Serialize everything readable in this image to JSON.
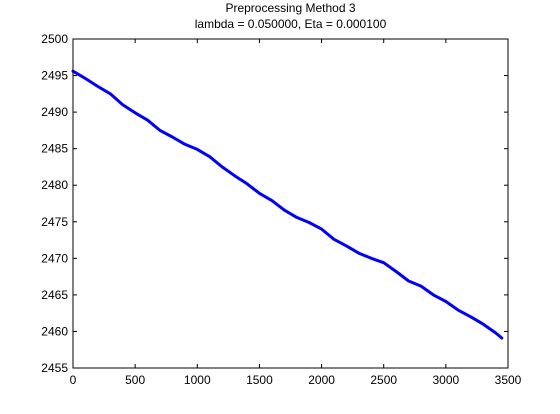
{
  "chart_data": {
    "type": "line",
    "title_lines": [
      "Preprocessing Method 3",
      "lambda = 0.050000, Eta = 0.000100"
    ],
    "xlabel": "",
    "ylabel": "",
    "xlim": [
      0,
      3500
    ],
    "ylim": [
      2455,
      2500
    ],
    "xticks": [
      0,
      500,
      1000,
      1500,
      2000,
      2500,
      3000,
      3500
    ],
    "yticks": [
      2455,
      2460,
      2465,
      2470,
      2475,
      2480,
      2485,
      2490,
      2495,
      2500
    ],
    "grid": false,
    "line_color": "#0000ff",
    "series": [
      {
        "x": [
          0,
          50,
          100,
          200,
          300,
          400,
          500,
          600,
          700,
          800,
          900,
          1000,
          1100,
          1200,
          1300,
          1400,
          1500,
          1600,
          1700,
          1800,
          1900,
          2000,
          2100,
          2200,
          2300,
          2400,
          2500,
          2600,
          2700,
          2800,
          2900,
          3000,
          3100,
          3200,
          3300,
          3400,
          3450
        ],
        "y": [
          2495.6,
          2495.1,
          2494.6,
          2493.5,
          2492.5,
          2491.0,
          2489.9,
          2488.9,
          2487.5,
          2486.6,
          2485.6,
          2484.9,
          2483.9,
          2482.5,
          2481.3,
          2480.2,
          2478.9,
          2477.9,
          2476.6,
          2475.6,
          2474.9,
          2474.0,
          2472.6,
          2471.7,
          2470.7,
          2470.0,
          2469.4,
          2468.2,
          2466.9,
          2466.2,
          2465.0,
          2464.1,
          2462.9,
          2462.0,
          2461.0,
          2459.8,
          2459.1
        ]
      }
    ]
  }
}
